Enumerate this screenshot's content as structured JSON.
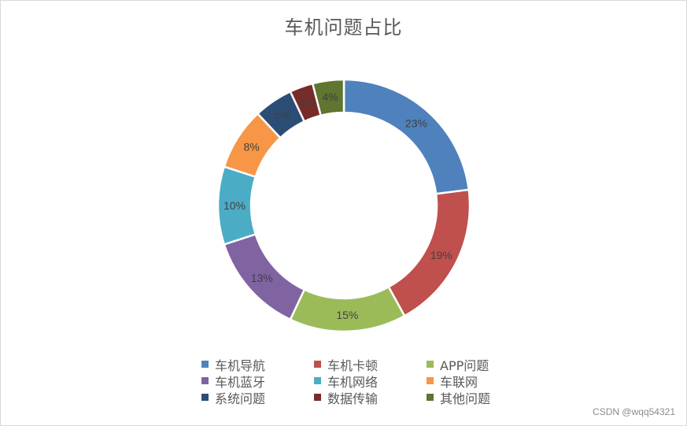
{
  "chart_data": {
    "type": "pie",
    "style": "donut",
    "title": "车机问题占比",
    "categories": [
      "车机导航",
      "车机卡顿",
      "APP问题",
      "车机蓝牙",
      "车机网络",
      "车联网",
      "系统问题",
      "数据传输",
      "其他问题"
    ],
    "values": [
      23,
      19,
      15,
      13,
      10,
      8,
      5,
      3,
      4
    ],
    "labels": [
      "23%",
      "19%",
      "15%",
      "13%",
      "10%",
      "8%",
      "5%",
      "3%",
      "4%"
    ],
    "colors": [
      "#4f81bd",
      "#c0504d",
      "#9bbb59",
      "#8064a2",
      "#4bacc6",
      "#f79646",
      "#2c4d75",
      "#772c2a",
      "#5f7530"
    ],
    "legend_position": "bottom",
    "grid": false
  },
  "watermark": "CSDN @wqq54321"
}
